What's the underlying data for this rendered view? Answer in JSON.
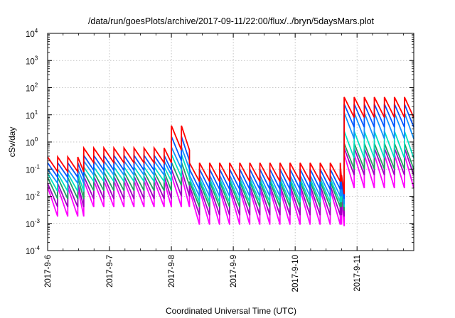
{
  "chart_data": {
    "type": "line",
    "title": "/data/run/goesPlots/archive/2017-09-11/22:00/flux/../bryn/5daysMars.plot",
    "xlabel": "Coordinated Universal Time (UTC)",
    "ylabel": "cSv/day",
    "xlim": [
      "2017-09-06T00:00",
      "2017-09-11T22:00"
    ],
    "xtick_labels": [
      "2017-9-6",
      "2017-9-7",
      "2017-9-8",
      "2017-9-9",
      "2017-9-10",
      "2017-9-11"
    ],
    "ylim": [
      0.0001,
      10000
    ],
    "yscale": "log",
    "ytick_labels": [
      {
        "base": "10",
        "exp": "-4"
      },
      {
        "base": "10",
        "exp": "-3"
      },
      {
        "base": "10",
        "exp": "-2"
      },
      {
        "base": "10",
        "exp": "-1"
      },
      {
        "base": "10",
        "exp": "0"
      },
      {
        "base": "10",
        "exp": "1"
      },
      {
        "base": "10",
        "exp": "2"
      },
      {
        "base": "10",
        "exp": "3"
      },
      {
        "base": "10",
        "exp": "4"
      }
    ],
    "grid": true,
    "sawtooth_period_hours": 3.9,
    "segments": [
      {
        "start": "2017-09-06T00:00",
        "end": "2017-09-06T14:00",
        "top": [
          0.28,
          0.17,
          0.1,
          0.07,
          0.05,
          0.03,
          0.022
        ],
        "bottom": [
          0.08,
          0.05,
          0.03,
          0.015,
          0.008,
          0.004,
          0.0018
        ]
      },
      {
        "start": "2017-09-06T14:00",
        "end": "2017-09-08T00:00",
        "top": [
          0.6,
          0.32,
          0.2,
          0.12,
          0.08,
          0.055,
          0.038
        ],
        "bottom": [
          0.17,
          0.09,
          0.06,
          0.035,
          0.016,
          0.008,
          0.004
        ]
      },
      {
        "start": "2017-09-08T00:00",
        "end": "2017-09-08T07:00",
        "top": [
          4.0,
          1.6,
          0.65,
          0.35,
          0.18,
          0.1,
          0.06
        ],
        "bottom": [
          0.5,
          0.2,
          0.1,
          0.05,
          0.025,
          0.01,
          0.004
        ]
      },
      {
        "start": "2017-09-08T07:00",
        "end": "2017-09-10T18:00",
        "top": [
          0.17,
          0.1,
          0.06,
          0.045,
          0.035,
          0.025,
          0.018
        ],
        "bottom": [
          0.035,
          0.018,
          0.01,
          0.006,
          0.004,
          0.002,
          0.0009
        ]
      },
      {
        "start": "2017-09-10T18:00",
        "end": "2017-09-10T19:00",
        "top": [
          0.06,
          0.045,
          0.03,
          0.03,
          0.025,
          0.018,
          0.012
        ],
        "bottom": [
          0.012,
          0.008,
          0.005,
          0.004,
          0.003,
          0.0018,
          0.0008
        ]
      },
      {
        "start": "2017-09-10T19:00",
        "end": "2017-09-11T22:00",
        "top": [
          45,
          25,
          12,
          2.5,
          0.9,
          0.6,
          0.35
        ],
        "bottom": [
          8,
          3.5,
          1.3,
          0.25,
          0.1,
          0.06,
          0.02
        ]
      }
    ],
    "series": [
      {
        "color": "#ff0000"
      },
      {
        "color": "#0055ff"
      },
      {
        "color": "#1090ff"
      },
      {
        "color": "#00e0c0"
      },
      {
        "color": "#20a060"
      },
      {
        "color": "#a000c0"
      },
      {
        "color": "#ff00ff"
      }
    ]
  }
}
